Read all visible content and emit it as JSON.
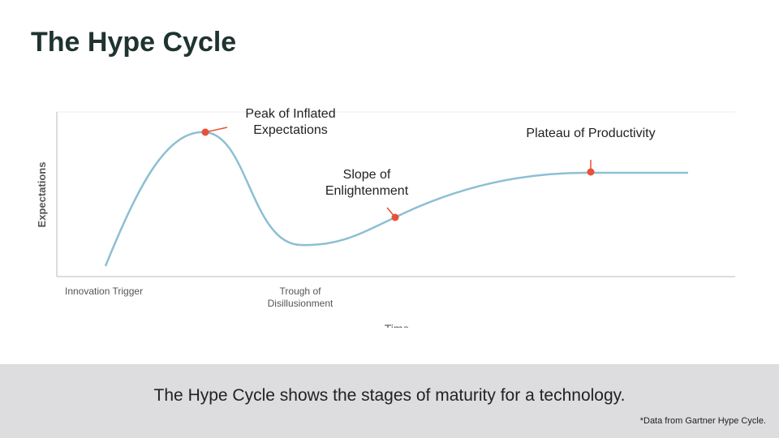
{
  "header": {
    "title": "The Hype Cycle"
  },
  "diagram": {
    "y_label": "Expectations",
    "x_label": "Time",
    "phases": [
      [
        "Innovation Trigger"
      ],
      [
        "Trough of",
        "Disillusionment"
      ]
    ],
    "callouts": [
      [
        "Peak of Inflated",
        "Expectations"
      ],
      [
        "Slope of",
        "Enlightenment"
      ],
      [
        "Plateau of Productivity"
      ]
    ]
  },
  "caption": "The Hype Cycle shows the stages of maturity for a technology.",
  "footnote": "*Data from Gartner Hype Cycle."
}
